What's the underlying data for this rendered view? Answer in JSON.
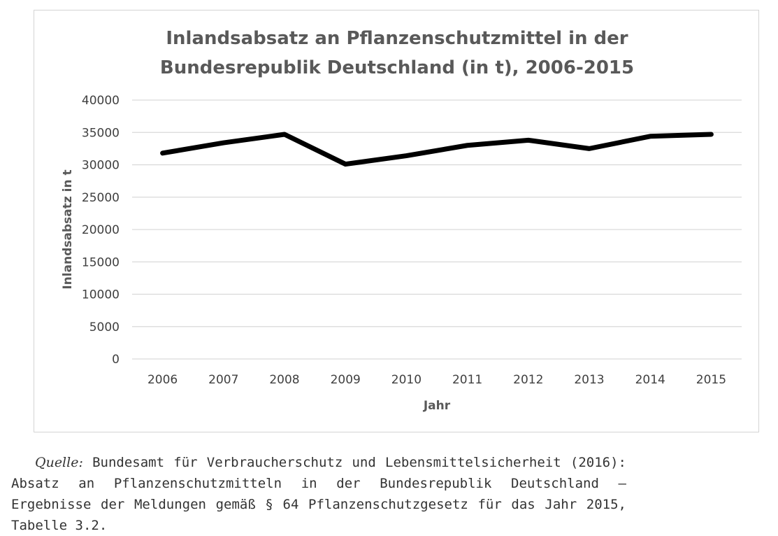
{
  "chart_data": {
    "type": "line",
    "title": [
      "Inlandsabsatz an Pflanzenschutzmittel in der",
      "Bundesrepublik Deutschland (in t), 2006-2015"
    ],
    "xlabel": "Jahr",
    "ylabel": "Inlandsabsatz in t",
    "categories": [
      "2006",
      "2007",
      "2008",
      "2009",
      "2010",
      "2011",
      "2012",
      "2013",
      "2014",
      "2015"
    ],
    "values": [
      31800,
      33400,
      34700,
      30100,
      31400,
      33000,
      33800,
      32500,
      34400,
      34700
    ],
    "ylim": [
      0,
      40000
    ],
    "yticks": [
      0,
      5000,
      10000,
      15000,
      20000,
      25000,
      30000,
      35000,
      40000
    ],
    "grid": true,
    "legend": "none",
    "line_color": "#000000"
  },
  "source": {
    "label": "Quelle:",
    "text": "Bundesamt für Verbraucherschutz und Lebensmittelsicherheit (2016): Absatz an Pflanzenschutzmitteln in der Bundesrepublik Deutschland – Ergebnisse der Meldungen gemäß § 64 Pflanzenschutzgesetz für das Jahr 2015, Tabelle 3.2."
  }
}
